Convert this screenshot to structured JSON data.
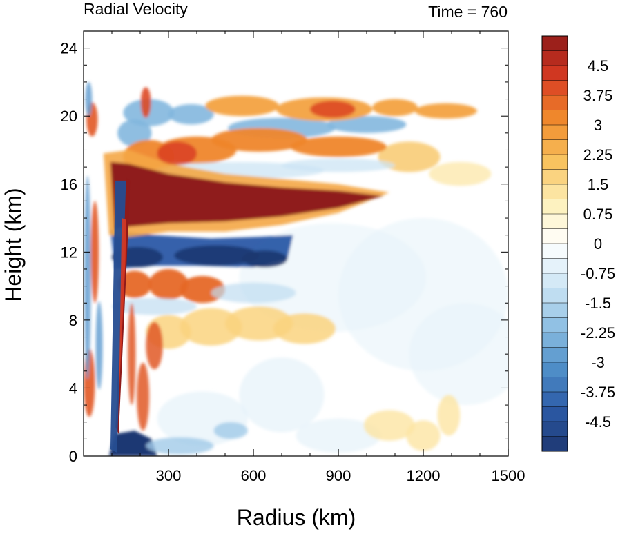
{
  "chart_data": {
    "type": "heatmap",
    "title": "Radial Velocity",
    "time_label": "Time = 760",
    "xlabel": "Radius (km)",
    "ylabel": "Height (km)",
    "xlim": [
      0,
      1500
    ],
    "ylim": [
      0,
      25
    ],
    "x_ticks": [
      300,
      600,
      900,
      1200,
      1500
    ],
    "x_tick_labels": [
      "300",
      "600",
      "900",
      "1200",
      "1500"
    ],
    "y_ticks": [
      0,
      4,
      8,
      12,
      16,
      20,
      24
    ],
    "y_tick_labels": [
      "0",
      "4",
      "8",
      "12",
      "16",
      "20",
      "24"
    ],
    "colorbar": {
      "min": -5.25,
      "max": 5.25,
      "step": 0.375,
      "labels": [
        {
          "value": 4.5,
          "text": "4.5"
        },
        {
          "value": 3.75,
          "text": "3.75"
        },
        {
          "value": 3,
          "text": "3"
        },
        {
          "value": 2.25,
          "text": "2.25"
        },
        {
          "value": 1.5,
          "text": "1.5"
        },
        {
          "value": 0.75,
          "text": "0.75"
        },
        {
          "value": 0,
          "text": "0"
        },
        {
          "value": -0.75,
          "text": "-0.75"
        },
        {
          "value": -1.5,
          "text": "-1.5"
        },
        {
          "value": -2.25,
          "text": "-2.25"
        },
        {
          "value": -3,
          "text": "-3"
        },
        {
          "value": -3.75,
          "text": "-3.75"
        },
        {
          "value": -4.5,
          "text": "-4.5"
        }
      ],
      "color_stops": [
        "#1d3770",
        "#2b5aa6",
        "#4f8fc8",
        "#8fc0e3",
        "#cfe6f5",
        "#ffffff",
        "#fdf0b8",
        "#f8c15c",
        "#f08a2c",
        "#d83a22",
        "#8f1a1a"
      ]
    },
    "features": [
      {
        "name": "upper outflow jet",
        "r": [
          75,
          1060
        ],
        "z_center": 15.0,
        "z_halfwidth": 1.2,
        "value": 5.5
      },
      {
        "name": "inflow below outflow",
        "r": [
          90,
          720
        ],
        "z_center": 11.9,
        "z_halfwidth": 0.8,
        "value": -5.0
      },
      {
        "name": "eyewall outflow column",
        "r": [
          90,
          130
        ],
        "z": [
          1.5,
          14
        ],
        "value": 5.3
      },
      {
        "name": "eyewall inflow column",
        "r": [
          60,
          110
        ],
        "z": [
          0,
          14
        ],
        "value": -4.5
      },
      {
        "name": "boundary-layer inflow",
        "r": [
          100,
          260
        ],
        "z": [
          0,
          1.2
        ],
        "value": -5.0
      },
      {
        "name": "mid-level outflow",
        "r": [
          130,
          500
        ],
        "z_center": 10.0,
        "value": 3.5
      },
      {
        "name": "lower mid-level outflow",
        "r": [
          200,
          900
        ],
        "z_center": 7.6,
        "value": 1.6
      },
      {
        "name": "upper outflow band",
        "r": [
          150,
          1050
        ],
        "z_center": 17.6,
        "value": 3.0
      },
      {
        "name": "tropopause outflow band",
        "r": [
          300,
          1350
        ],
        "z_center": 20.3,
        "value": 2.6
      },
      {
        "name": "upper inflow band",
        "r": [
          100,
          1000
        ],
        "z_center": 19.0,
        "value": -2.0
      },
      {
        "name": "weak inflow below jet",
        "r": [
          700,
          1500
        ],
        "z": [
          6,
          14
        ],
        "value": -0.6
      },
      {
        "name": "far-field low-level outflow",
        "r": [
          1000,
          1300
        ],
        "z_center": 1.8,
        "value": 1.2
      }
    ]
  }
}
